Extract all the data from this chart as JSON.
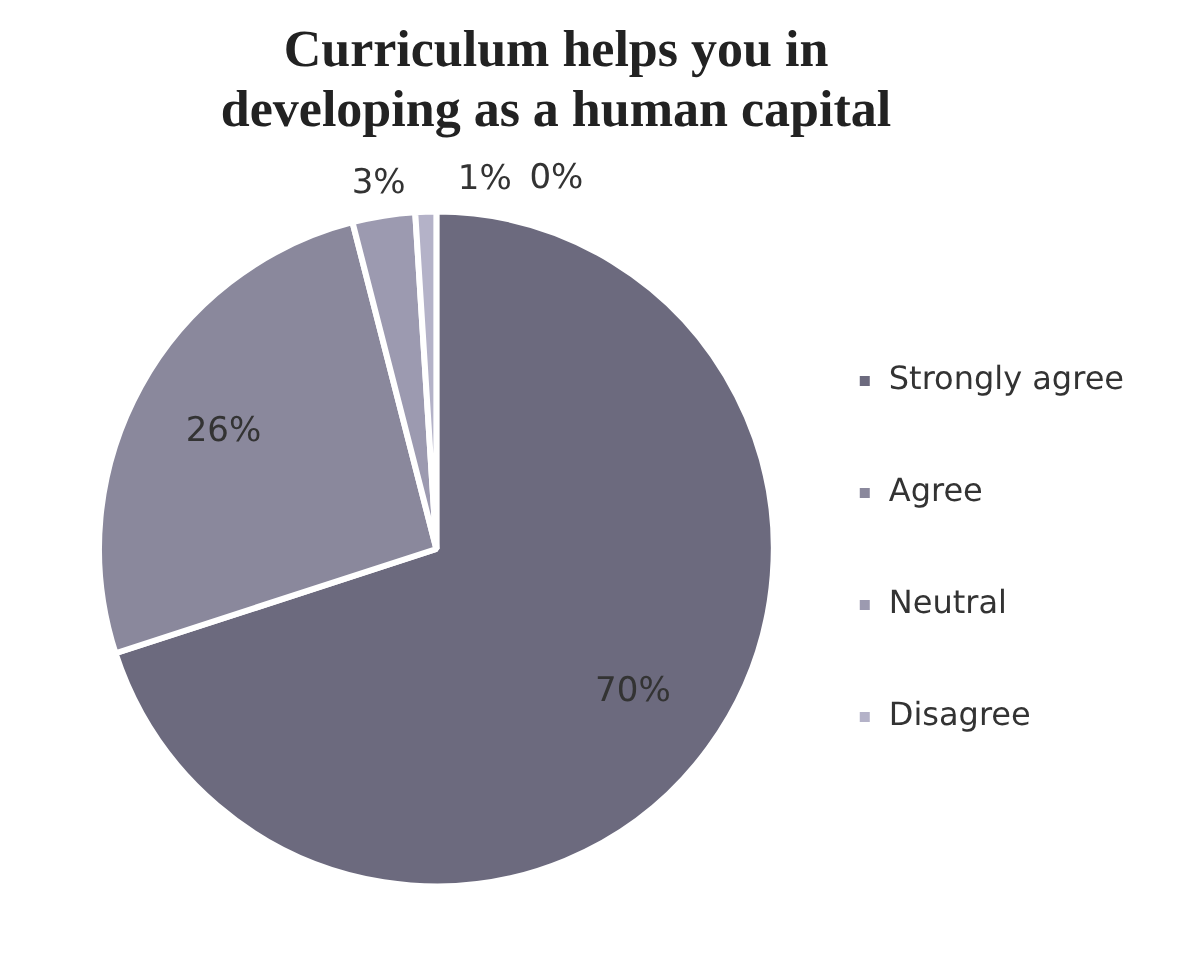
{
  "chart_data": {
    "type": "pie",
    "title": "Curriculum helps you in developing as a human capital",
    "categories": [
      "Strongly agree",
      "Agree",
      "Neutral",
      "Disagree",
      null
    ],
    "values": [
      70,
      26,
      3,
      1,
      0
    ],
    "colors": [
      "#6c6a7e",
      "#8a889c",
      "#9c9ab0",
      "#b4b2c8",
      "#c8c6d8"
    ],
    "value_labels": [
      "70%",
      "26%",
      "3%",
      "1%",
      "0%"
    ],
    "legend": "right"
  }
}
